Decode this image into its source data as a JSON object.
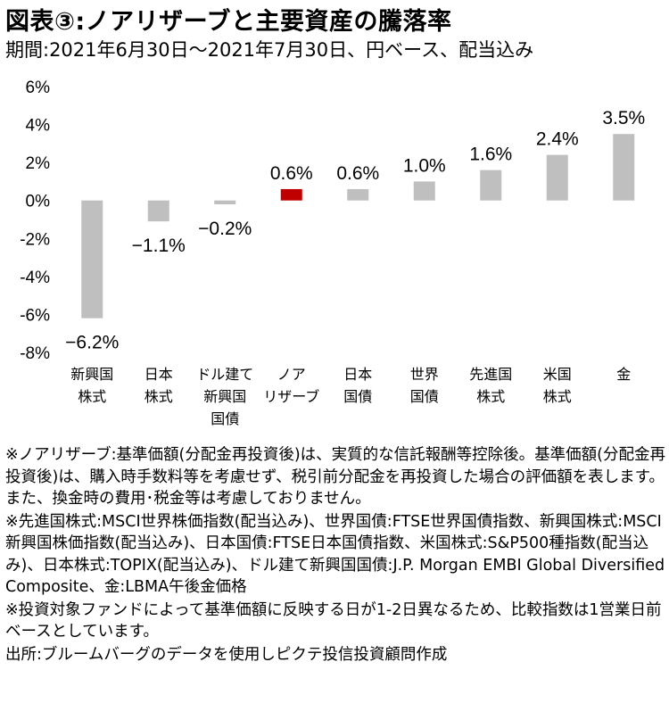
{
  "header": {
    "title": "図表③:ノアリザーブと主要資産の騰落率",
    "subtitle": "期間:2021年6月30日～2021年7月30日、円ベース、配当込み"
  },
  "chart_data": {
    "type": "bar",
    "categories": [
      [
        "新興国",
        "株式"
      ],
      [
        "日本",
        "株式"
      ],
      [
        "ドル建て",
        "新興国",
        "国債"
      ],
      [
        "ノア",
        "リザーブ"
      ],
      [
        "日本",
        "国債"
      ],
      [
        "世界",
        "国債"
      ],
      [
        "先進国",
        "株式"
      ],
      [
        "米国",
        "株式"
      ],
      [
        "金"
      ]
    ],
    "values": [
      -6.2,
      -1.1,
      -0.2,
      0.6,
      0.6,
      1.0,
      1.6,
      2.4,
      3.5
    ],
    "data_labels": [
      "−6.2%",
      "−1.1%",
      "−0.2%",
      "0.6%",
      "0.6%",
      "1.0%",
      "1.6%",
      "2.4%",
      "3.5%"
    ],
    "yticks": [
      6,
      4,
      2,
      0,
      -2,
      -4,
      -6,
      -8
    ],
    "ytick_labels": [
      "6%",
      "4%",
      "2%",
      "0%",
      "-2%",
      "-4%",
      "-6%",
      "-8%"
    ],
    "ylim": [
      -8,
      6
    ],
    "grid": false,
    "colors": {
      "default": "#BFBFBF",
      "highlight": "#C00000"
    },
    "highlight_index": 3
  },
  "notes": [
    "※ノアリザーブ:基準価額(分配金再投資後)は、実質的な信託報酬等控除後。基準価額(分配金再投資後)は、購入時手数料等を考慮せず、税引前分配金を再投資した場合の評価額を表します。また、換金時の費用･税金等は考慮しておりません。",
    "※先進国株式:MSCI世界株価指数(配当込み)、世界国債:FTSE世界国債指数、新興国株式:MSCI新興国株価指数(配当込み)、日本国債:FTSE日本国債指数、米国株式:S&P500種指数(配当込み)、日本株式:TOPIX(配当込み)、ドル建て新興国国債:J.P. Morgan EMBI Global Diversified Composite、金:LBMA午後金価格",
    "※投資対象ファンドによって基準価額に反映する日が1-2日異なるため、比較指数は1営業日前ベースとしています。",
    "出所:ブルームバーグのデータを使用しピクテ投信投資顧問作成"
  ]
}
